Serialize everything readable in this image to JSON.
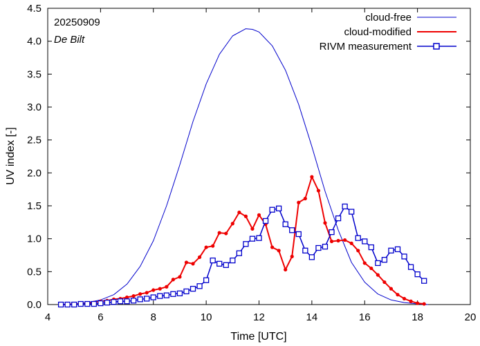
{
  "chart_data": {
    "type": "line",
    "title": "",
    "xlabel": "Time  [UTC]",
    "ylabel": "UV index  [-]",
    "xlim": [
      4,
      20
    ],
    "ylim": [
      0,
      4.5
    ],
    "xticks": [
      4,
      6,
      8,
      10,
      12,
      14,
      16,
      18,
      20
    ],
    "yticks": [
      0.0,
      0.5,
      1.0,
      1.5,
      2.0,
      2.5,
      3.0,
      3.5,
      4.0,
      4.5
    ],
    "xtick_labels": [
      "4",
      "6",
      "8",
      "10",
      "12",
      "14",
      "16",
      "18",
      "20"
    ],
    "ytick_labels": [
      "0.0",
      "0.5",
      "1.0",
      "1.5",
      "2.0",
      "2.5",
      "3.0",
      "3.5",
      "4.0",
      "4.5"
    ],
    "legend_position": "top-right",
    "annotations": {
      "date": "20250909",
      "station": "De Bilt"
    },
    "series": [
      {
        "name": "cloud-free",
        "color": "#0000cc",
        "marker": "none",
        "x": [
          4.5,
          5.0,
          5.5,
          6.0,
          6.5,
          7.0,
          7.5,
          8.0,
          8.5,
          9.0,
          9.5,
          10.0,
          10.5,
          11.0,
          11.5,
          11.75,
          12.0,
          12.5,
          13.0,
          13.5,
          14.0,
          14.5,
          15.0,
          15.5,
          16.0,
          16.5,
          17.0,
          17.5,
          18.0,
          18.4
        ],
        "y": [
          0.0,
          0.01,
          0.03,
          0.07,
          0.15,
          0.31,
          0.58,
          0.97,
          1.5,
          2.12,
          2.78,
          3.35,
          3.8,
          4.08,
          4.19,
          4.18,
          4.14,
          3.93,
          3.56,
          3.04,
          2.4,
          1.72,
          1.13,
          0.64,
          0.34,
          0.16,
          0.07,
          0.03,
          0.01,
          0.0
        ]
      },
      {
        "name": "cloud-modified",
        "color": "#ee0000",
        "marker": "circle",
        "x": [
          4.5,
          4.75,
          5.0,
          5.25,
          5.5,
          5.75,
          6.0,
          6.25,
          6.5,
          6.75,
          7.0,
          7.25,
          7.5,
          7.75,
          8.0,
          8.25,
          8.5,
          8.75,
          9.0,
          9.25,
          9.5,
          9.75,
          10.0,
          10.25,
          10.5,
          10.75,
          11.0,
          11.25,
          11.5,
          11.75,
          12.0,
          12.25,
          12.5,
          12.75,
          13.0,
          13.25,
          13.5,
          13.75,
          14.0,
          14.25,
          14.5,
          14.75,
          15.0,
          15.25,
          15.5,
          15.75,
          16.0,
          16.25,
          16.5,
          16.75,
          17.0,
          17.25,
          17.5,
          17.75,
          18.0,
          18.25
        ],
        "y": [
          0.0,
          0.0,
          0.01,
          0.01,
          0.02,
          0.03,
          0.05,
          0.06,
          0.08,
          0.09,
          0.11,
          0.13,
          0.16,
          0.18,
          0.22,
          0.24,
          0.27,
          0.38,
          0.42,
          0.64,
          0.62,
          0.72,
          0.87,
          0.89,
          1.09,
          1.08,
          1.23,
          1.4,
          1.34,
          1.15,
          1.36,
          1.22,
          0.87,
          0.82,
          0.53,
          0.73,
          1.55,
          1.61,
          1.94,
          1.73,
          1.24,
          0.96,
          0.97,
          0.98,
          0.93,
          0.82,
          0.63,
          0.55,
          0.45,
          0.34,
          0.24,
          0.15,
          0.09,
          0.05,
          0.02,
          0.01
        ]
      },
      {
        "name": "RIVM measurement",
        "color": "#0000cc",
        "marker": "square",
        "x": [
          4.5,
          4.75,
          5.0,
          5.25,
          5.5,
          5.75,
          6.0,
          6.25,
          6.5,
          6.75,
          7.0,
          7.25,
          7.5,
          7.75,
          8.0,
          8.25,
          8.5,
          8.75,
          9.0,
          9.25,
          9.5,
          9.75,
          10.0,
          10.25,
          10.5,
          10.75,
          11.0,
          11.25,
          11.5,
          11.75,
          12.0,
          12.25,
          12.5,
          12.75,
          13.0,
          13.25,
          13.5,
          13.75,
          14.0,
          14.25,
          14.5,
          14.75,
          15.0,
          15.25,
          15.5,
          15.75,
          16.0,
          16.25,
          16.5,
          16.75,
          17.0,
          17.25,
          17.5,
          17.75,
          18.0,
          18.25
        ],
        "y": [
          0.0,
          0.0,
          0.0,
          0.01,
          0.01,
          0.01,
          0.02,
          0.03,
          0.04,
          0.05,
          0.05,
          0.06,
          0.08,
          0.09,
          0.11,
          0.13,
          0.14,
          0.16,
          0.17,
          0.2,
          0.24,
          0.28,
          0.37,
          0.67,
          0.62,
          0.6,
          0.67,
          0.78,
          0.92,
          1.0,
          1.01,
          1.27,
          1.44,
          1.46,
          1.22,
          1.13,
          1.07,
          0.82,
          0.72,
          0.86,
          0.88,
          1.1,
          1.31,
          1.49,
          1.41,
          1.01,
          0.96,
          0.87,
          0.63,
          0.68,
          0.82,
          0.84,
          0.73,
          0.57,
          0.46,
          0.36
        ]
      }
    ]
  }
}
